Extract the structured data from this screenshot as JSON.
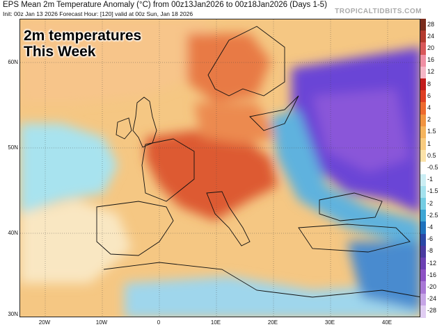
{
  "header": {
    "title": "EPS Mean 2m Temperature Anomaly (°C) from 00z13Jan2026 to 00z18Jan2026 (Days 1-5)",
    "subtitle": "Init: 00z Jan 13 2026   Forecast Hour: [120]   valid at 00z Sun, Jan 18 2026",
    "brand": "TROPICALTIDBITS.COM"
  },
  "overlay": {
    "line1": "2m temperatures",
    "line2": "This Week"
  },
  "lat_labels": [
    "60N",
    "50N",
    "40N",
    "30N"
  ],
  "lon_labels": [
    "20W",
    "10W",
    "0",
    "10E",
    "20E",
    "30E",
    "40E"
  ],
  "colorbar": {
    "labels": [
      "28",
      "24",
      "20",
      "16",
      "12",
      "8",
      "6",
      "4",
      "2",
      "1.5",
      "1",
      "0.5",
      "-0.5",
      "-1",
      "-1.5",
      "-2",
      "-2.5",
      "-4",
      "-6",
      "-8",
      "-12",
      "-16",
      "-20",
      "-24",
      "-28"
    ],
    "colors": [
      "#7a2d1d",
      "#b33a2e",
      "#d8585a",
      "#ef8fa3",
      "#f5b6c6",
      "#c21c1c",
      "#de3e23",
      "#ed6a2e",
      "#f19440",
      "#f5b45d",
      "#f8cb7f",
      "#fbe2a9",
      "#ffffff",
      "#cbeef4",
      "#a4e2ee",
      "#74cde3",
      "#3ea6d4",
      "#1f72bd",
      "#2b48a6",
      "#4a3aa0",
      "#6b40b3",
      "#8d52c4",
      "#a978d6",
      "#c6a5e6",
      "#e0cdf2"
    ]
  },
  "colors": {
    "land_base": "#f5c783",
    "sea_neutral": "#f7e0b5",
    "warm_core": "#d9532e",
    "cold_core": "#6b3fd6",
    "atlantic_cool": "#9fe2ee"
  }
}
